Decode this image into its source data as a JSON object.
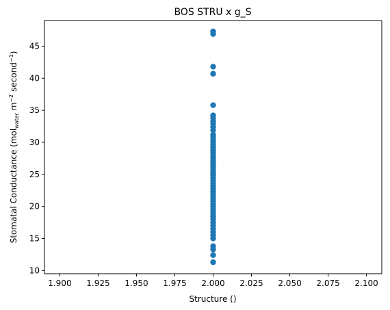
{
  "chart_data": {
    "type": "scatter",
    "title": "BOS STRU x g_S",
    "xlabel": "Structure ()",
    "ylabel": {
      "prefix": "Stomatal Conductance (mol",
      "sub": "water",
      "mid1": " m",
      "sup1": "−2",
      "mid2": " second",
      "sup2": "−1",
      "suffix": ")"
    },
    "xlim": [
      1.89,
      2.11
    ],
    "ylim": [
      9.5,
      49.0
    ],
    "xticks": [
      "1.900",
      "1.925",
      "1.950",
      "1.975",
      "2.000",
      "2.025",
      "2.050",
      "2.075",
      "2.100"
    ],
    "yticks": [
      "10",
      "15",
      "20",
      "25",
      "30",
      "35",
      "40",
      "45"
    ],
    "grid": false,
    "marker_color": "#1f77b4",
    "points": [
      {
        "x": 2.0,
        "y": 47.3
      },
      {
        "x": 2.0,
        "y": 46.9
      },
      {
        "x": 2.0,
        "y": 41.8
      },
      {
        "x": 2.0,
        "y": 40.7
      },
      {
        "x": 2.0,
        "y": 35.8
      },
      {
        "x": 2.0,
        "y": 34.2
      },
      {
        "x": 2.0,
        "y": 33.8
      },
      {
        "x": 2.0,
        "y": 33.3
      },
      {
        "x": 2.0,
        "y": 32.9
      },
      {
        "x": 2.0,
        "y": 32.4
      },
      {
        "x": 2.0,
        "y": 31.9
      },
      {
        "x": 2.0,
        "y": 31.2
      },
      {
        "x": 2.0,
        "y": 30.8
      },
      {
        "x": 2.0,
        "y": 30.4
      },
      {
        "x": 2.0,
        "y": 30.0
      },
      {
        "x": 2.0,
        "y": 29.6
      },
      {
        "x": 2.0,
        "y": 29.2
      },
      {
        "x": 2.0,
        "y": 28.8
      },
      {
        "x": 2.0,
        "y": 28.4
      },
      {
        "x": 2.0,
        "y": 28.0
      },
      {
        "x": 2.0,
        "y": 27.6
      },
      {
        "x": 2.0,
        "y": 27.2
      },
      {
        "x": 2.0,
        "y": 26.8
      },
      {
        "x": 2.0,
        "y": 26.4
      },
      {
        "x": 2.0,
        "y": 26.0
      },
      {
        "x": 2.0,
        "y": 25.6
      },
      {
        "x": 2.0,
        "y": 25.2
      },
      {
        "x": 2.0,
        "y": 24.8
      },
      {
        "x": 2.0,
        "y": 24.4
      },
      {
        "x": 2.0,
        "y": 24.0
      },
      {
        "x": 2.0,
        "y": 23.6
      },
      {
        "x": 2.0,
        "y": 23.2
      },
      {
        "x": 2.0,
        "y": 22.8
      },
      {
        "x": 2.0,
        "y": 22.4
      },
      {
        "x": 2.0,
        "y": 22.0
      },
      {
        "x": 2.0,
        "y": 21.6
      },
      {
        "x": 2.0,
        "y": 21.2
      },
      {
        "x": 2.0,
        "y": 20.8
      },
      {
        "x": 2.0,
        "y": 20.4
      },
      {
        "x": 2.0,
        "y": 20.0
      },
      {
        "x": 2.0,
        "y": 19.6
      },
      {
        "x": 2.0,
        "y": 19.2
      },
      {
        "x": 2.0,
        "y": 18.8
      },
      {
        "x": 2.0,
        "y": 18.4
      },
      {
        "x": 2.0,
        "y": 18.0
      },
      {
        "x": 2.0,
        "y": 17.5
      },
      {
        "x": 2.0,
        "y": 17.0
      },
      {
        "x": 2.0,
        "y": 16.5
      },
      {
        "x": 2.0,
        "y": 16.0
      },
      {
        "x": 2.0,
        "y": 15.5
      },
      {
        "x": 2.0,
        "y": 15.0
      },
      {
        "x": 2.0,
        "y": 13.8
      },
      {
        "x": 2.0,
        "y": 13.3
      },
      {
        "x": 2.0,
        "y": 12.4
      },
      {
        "x": 2.0,
        "y": 11.3
      }
    ]
  }
}
